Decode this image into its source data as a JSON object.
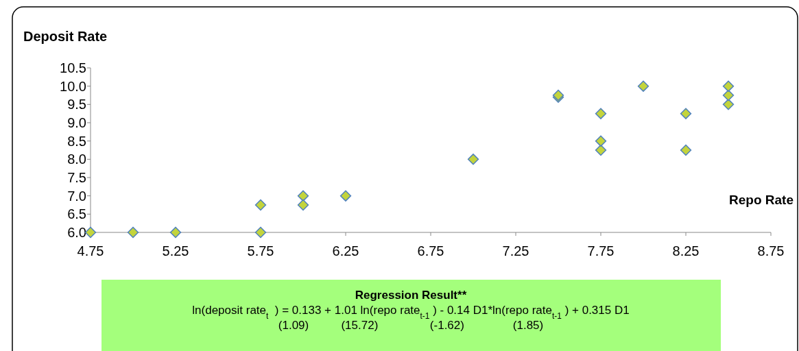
{
  "chart_data": {
    "type": "scatter",
    "ylabel": "Deposit Rate",
    "xlabel": "Repo Rate",
    "x": [
      4.75,
      5,
      5.25,
      5.75,
      5.75,
      6,
      6,
      6.25,
      7,
      7.5,
      7.5,
      7.75,
      7.75,
      7.75,
      8,
      8.25,
      8.25,
      8.5,
      8.5,
      8.5
    ],
    "values": [
      6,
      6,
      6,
      6,
      6.75,
      6.75,
      7,
      7,
      8,
      9.75,
      9.7,
      9.25,
      8.5,
      8.25,
      10,
      9.25,
      8.25,
      10,
      9.75,
      9.5
    ],
    "color": "#c3d43c",
    "marker": "diamond",
    "grid": false,
    "xlim": [
      4.75,
      8.75
    ],
    "xticks": [
      4.75,
      5.25,
      5.75,
      6.25,
      6.75,
      7.25,
      7.75,
      8.25,
      8.75
    ],
    "ylim": [
      6,
      10.5
    ],
    "yticks": [
      {
        "value": 6,
        "label": "6.0"
      },
      {
        "value": 6.5,
        "label": "6.5"
      },
      {
        "value": 7,
        "label": "7.0"
      },
      {
        "value": 7.5,
        "label": "7.5"
      },
      {
        "value": 8,
        "label": "8.0"
      },
      {
        "value": 8.5,
        "label": "8.5"
      },
      {
        "value": 9,
        "label": "9.0"
      },
      {
        "value": 9.5,
        "label": "9.5"
      },
      {
        "value": 10,
        "label": "10.0"
      },
      {
        "value": 10.5,
        "label": "10.5"
      }
    ],
    "annotations": [
      "Regression Result**",
      "ln(deposit rate$_{t}$ ) = 0.133 + 1.01 ln(repo rate$_{t-1}$) - 0.14 D1*ln(repo rate$_{t-1}$) + 0.315 D1",
      "(1.09)          (15.72)                (-1.62)               (1.85)"
    ]
  }
}
